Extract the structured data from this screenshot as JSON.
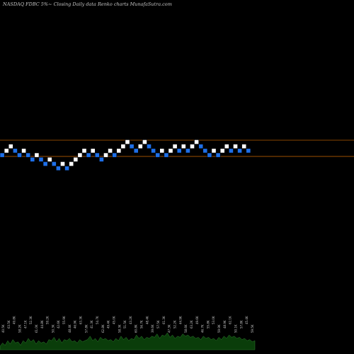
{
  "header": {
    "title": "NASDAQ FDBC 5%~  Closing Daily data Renko  charts MunafaSutra.com"
  },
  "chart_data": {
    "type": "renko",
    "box_direction_note": "white = up box, blue = down box",
    "colors": {
      "background": "#000000",
      "up_box": "#ffffff",
      "down_box": "#1e6fe8",
      "box_border": "#000000",
      "level_line": "#b35a00",
      "volume_area": "#0a3d0a",
      "volume_area_edge": "#2f7d2f",
      "volume_label": "#c8c8c8"
    },
    "boxes": [
      {
        "dir": "down",
        "level": 0
      },
      {
        "dir": "up",
        "level": 1
      },
      {
        "dir": "up",
        "level": 2
      },
      {
        "dir": "down",
        "level": 1
      },
      {
        "dir": "down",
        "level": 0
      },
      {
        "dir": "up",
        "level": 1
      },
      {
        "dir": "down",
        "level": 0
      },
      {
        "dir": "down",
        "level": -1
      },
      {
        "dir": "up",
        "level": 0
      },
      {
        "dir": "down",
        "level": -1
      },
      {
        "dir": "down",
        "level": -2
      },
      {
        "dir": "up",
        "level": -1
      },
      {
        "dir": "down",
        "level": -2
      },
      {
        "dir": "down",
        "level": -3
      },
      {
        "dir": "up",
        "level": -2
      },
      {
        "dir": "down",
        "level": -3
      },
      {
        "dir": "up",
        "level": -2
      },
      {
        "dir": "up",
        "level": -1
      },
      {
        "dir": "up",
        "level": 0
      },
      {
        "dir": "up",
        "level": 1
      },
      {
        "dir": "down",
        "level": 0
      },
      {
        "dir": "up",
        "level": 1
      },
      {
        "dir": "down",
        "level": 0
      },
      {
        "dir": "down",
        "level": -1
      },
      {
        "dir": "up",
        "level": 0
      },
      {
        "dir": "up",
        "level": 1
      },
      {
        "dir": "down",
        "level": 0
      },
      {
        "dir": "up",
        "level": 1
      },
      {
        "dir": "up",
        "level": 2
      },
      {
        "dir": "up",
        "level": 3
      },
      {
        "dir": "down",
        "level": 2
      },
      {
        "dir": "down",
        "level": 1
      },
      {
        "dir": "up",
        "level": 2
      },
      {
        "dir": "up",
        "level": 3
      },
      {
        "dir": "down",
        "level": 2
      },
      {
        "dir": "down",
        "level": 1
      },
      {
        "dir": "down",
        "level": 0
      },
      {
        "dir": "up",
        "level": 1
      },
      {
        "dir": "down",
        "level": 0
      },
      {
        "dir": "up",
        "level": 1
      },
      {
        "dir": "up",
        "level": 2
      },
      {
        "dir": "down",
        "level": 1
      },
      {
        "dir": "up",
        "level": 2
      },
      {
        "dir": "down",
        "level": 1
      },
      {
        "dir": "up",
        "level": 2
      },
      {
        "dir": "up",
        "level": 3
      },
      {
        "dir": "down",
        "level": 2
      },
      {
        "dir": "down",
        "level": 1
      },
      {
        "dir": "down",
        "level": 0
      },
      {
        "dir": "up",
        "level": 1
      },
      {
        "dir": "down",
        "level": 0
      },
      {
        "dir": "up",
        "level": 1
      },
      {
        "dir": "up",
        "level": 2
      },
      {
        "dir": "down",
        "level": 1
      },
      {
        "dir": "up",
        "level": 2
      },
      {
        "dir": "down",
        "level": 1
      },
      {
        "dir": "up",
        "level": 2
      },
      {
        "dir": "down",
        "level": 1
      }
    ],
    "level_lines": [
      {
        "level": 3.4
      },
      {
        "level": -0.3
      }
    ],
    "volume": [
      3,
      6,
      4,
      8,
      5,
      9,
      6,
      7,
      4,
      8,
      6,
      10,
      7,
      9,
      5,
      8,
      6,
      7,
      5,
      9,
      8,
      11,
      7,
      10,
      6,
      9,
      8,
      10,
      7,
      8,
      6,
      9,
      7,
      8,
      9,
      12,
      8,
      10,
      7,
      11,
      9,
      10,
      8,
      9,
      7,
      10,
      8,
      12,
      9,
      11,
      8,
      10,
      9,
      13,
      10,
      12,
      9,
      11,
      10,
      12,
      11,
      14,
      10,
      13,
      12,
      15,
      11,
      13,
      10,
      12,
      11,
      14,
      12,
      13,
      11,
      12,
      10,
      11,
      9,
      12,
      10,
      11,
      9,
      10,
      8,
      11,
      9,
      12,
      10,
      13,
      11,
      12,
      10,
      11,
      9,
      10,
      8,
      9,
      7,
      8
    ],
    "volume_labels": [
      "40.5K",
      "63.5K",
      "49.8K",
      "58.2K",
      "47.1K",
      "52.3K",
      "61.0K",
      "44.8K",
      "59.2K",
      "50.3K",
      "42.6K",
      "55.9K",
      "48.4K",
      "46.9K",
      "63.3K",
      "57.8K",
      "41.3K",
      "54.7K",
      "62.8K",
      "49.4K",
      "45.0K",
      "58.3K",
      "51.5K",
      "43.2K",
      "60.8K",
      "56.7K",
      "48.4K",
      "39.6K",
      "57.5K",
      "61.3K",
      "47.3K",
      "52.2K",
      "44.9K",
      "58.6K",
      "63.2K",
      "49.6K",
      "46.7K",
      "55.8K",
      "53.0K",
      "59.9K",
      "48.9K",
      "62.1K",
      "50.1K",
      "57.8K",
      "45.4K",
      "59.5K"
    ]
  }
}
